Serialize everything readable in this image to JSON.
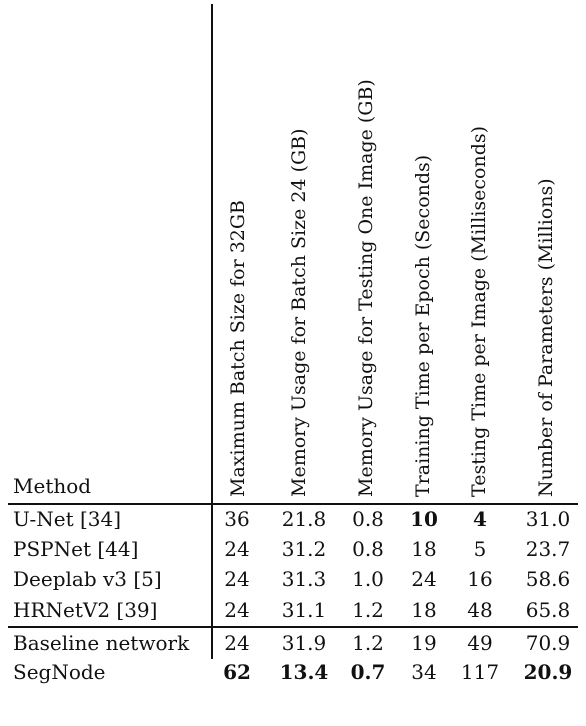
{
  "table": {
    "method_header": "Method",
    "column_headers": [
      "Maximum Batch Size for 32GB",
      "Memory Usage for Batch Size 24 (GB)",
      "Memory Usage for Testing One Image (GB)",
      "Training Time per Epoch (Seconds)",
      "Testing Time per Image (Milliseconds)",
      "Number of Parameters (Millions)"
    ],
    "rows": [
      {
        "method": "U-Net [34]",
        "values": [
          "36",
          "21.8",
          "0.8",
          "10",
          "4",
          "31.0"
        ],
        "bold": [
          false,
          false,
          false,
          true,
          true,
          false
        ]
      },
      {
        "method": "PSPNet [44]",
        "values": [
          "24",
          "31.2",
          "0.8",
          "18",
          "5",
          "23.7"
        ],
        "bold": [
          false,
          false,
          false,
          false,
          false,
          false
        ]
      },
      {
        "method": "Deeplab v3 [5]",
        "values": [
          "24",
          "31.3",
          "1.0",
          "24",
          "16",
          "58.6"
        ],
        "bold": [
          false,
          false,
          false,
          false,
          false,
          false
        ]
      },
      {
        "method": "HRNetV2 [39]",
        "values": [
          "24",
          "31.1",
          "1.2",
          "18",
          "48",
          "65.8"
        ],
        "bold": [
          false,
          false,
          false,
          false,
          false,
          false
        ]
      },
      {
        "method": "Baseline network",
        "values": [
          "24",
          "31.9",
          "1.2",
          "19",
          "49",
          "70.9"
        ],
        "bold": [
          false,
          false,
          false,
          false,
          false,
          false
        ]
      },
      {
        "method": "SegNode",
        "values": [
          "62",
          "13.4",
          "0.7",
          "34",
          "117",
          "20.9"
        ],
        "bold": [
          true,
          true,
          true,
          false,
          false,
          true
        ]
      }
    ]
  }
}
